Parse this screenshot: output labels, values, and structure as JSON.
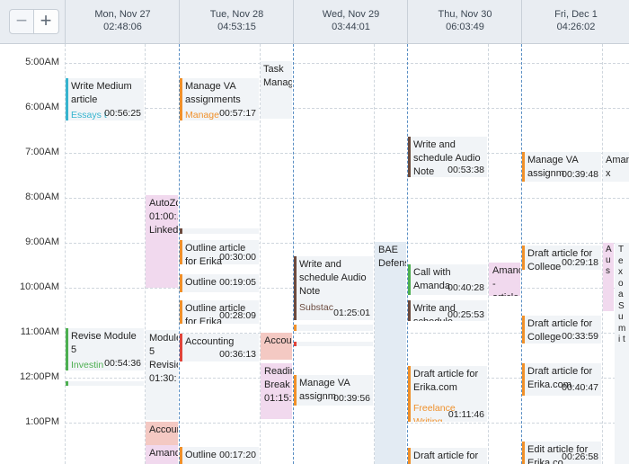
{
  "toolbar": {
    "zoom_out": "−",
    "zoom_in": "+"
  },
  "days": [
    {
      "name": "Mon, Nov 27",
      "time": "02:48:06"
    },
    {
      "name": "Tue, Nov 28",
      "time": "04:53:15"
    },
    {
      "name": "Wed, Nov 29",
      "time": "03:44:01"
    },
    {
      "name": "Thu, Nov 30",
      "time": "06:03:49"
    },
    {
      "name": "Fri, Dec 1",
      "time": "04:26:02"
    }
  ],
  "hours": [
    "5:00AM",
    "6:00AM",
    "7:00AM",
    "8:00AM",
    "9:00AM",
    "10:00AM",
    "11:00AM",
    "12:00PM",
    "1:00PM"
  ],
  "colors": {
    "teal": "#36b4cf",
    "orange": "#f0902a",
    "brown": "#6b4a3e",
    "green": "#4caf50",
    "red": "#e0443a",
    "pink": "#f1d9ee",
    "salmon": "#f4c9c3",
    "day_divider": "#5a8fc4"
  },
  "events": {
    "mon_medium_title": "Write Medium article",
    "mon_medium_sub": "Essays t",
    "mon_medium_dur": "00:56:25",
    "mon_autozone_title": "AutoZone 01:00:... LinkedIn",
    "mon_revise_title": "Revise Module 5",
    "mon_revise_sub": "Investin",
    "mon_revise_dur": "00:54:36",
    "mon_module_title": "Module 5 Revisions 01:30:",
    "mon_acct_title": "Accounting",
    "mon_amanda_title": "Amanda x",
    "tue_va_title": "Manage VA assignments",
    "tue_va_sub": "Manage",
    "tue_va_dur": "00:57:17",
    "tue_task_title": "Task Management",
    "tue_outline1_title": "Outline article for Erika",
    "tue_outline1_dur": "00:30:00",
    "tue_outline2_title": "Outline",
    "tue_outline2_dur": "00:19:05",
    "tue_outline3_title": "Outline article for Erika",
    "tue_outline3_dur": "00:28:09",
    "tue_acct_title": "Accounting",
    "tue_acct_dur": "00:36:13",
    "tue_acct2_title": "Accounting",
    "tue_reading_title": "Reading Break 01:15:",
    "tue_outline4_title": "Outline",
    "tue_outline4_dur": "00:17:20",
    "wed_write_title": "Write and schedule Audio Note",
    "wed_write_sub": "Substac",
    "wed_write_dur": "01:25:01",
    "wed_bae_title": "BAE Defense",
    "wed_va_title": "Manage VA assignm",
    "wed_va_dur": "00:39:56",
    "thu_write_title": "Write and schedule Audio Note",
    "thu_write_dur": "00:53:38",
    "thu_call_title": "Call with Amanda",
    "thu_call_dur": "00:40:28",
    "thu_amanda_title": "Amanda^2 - article",
    "thu_write2_title": "Write and schedule",
    "thu_write2_dur": "00:25:53",
    "thu_draft_title": "Draft article for Erika.com",
    "thu_draft_sub": "Freelance Writing",
    "thu_draft_dur": "01:11:46",
    "thu_draft2_title": "Draft article for",
    "fri_va_title": "Manage VA assignm",
    "fri_va_dur": "00:39:48",
    "fri_amanda_title": "Amanda x",
    "fri_draft1_title": "Draft article for College",
    "fri_draft1_dur": "00:29:18",
    "fri_tiny_title": "A u s",
    "fri_tiny2_title": "T e x o a S u m i t",
    "fri_draft2_title": "Draft article for College",
    "fri_draft2_dur": "00:33:59",
    "fri_draft3_title": "Draft article for Erika.com",
    "fri_draft3_dur": "00:40:47",
    "fri_edit_title": "Edit article for Erika.co",
    "fri_edit_dur": "00:26:58"
  }
}
